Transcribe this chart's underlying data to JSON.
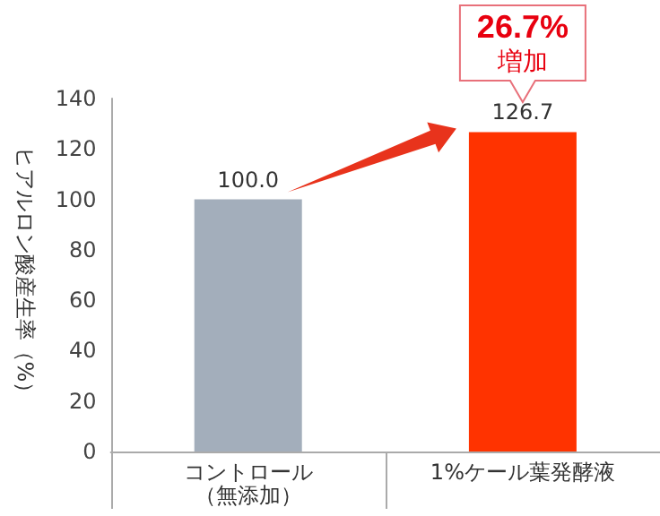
{
  "chart_data": {
    "type": "bar",
    "ylabel": "ヒアルロン酸産生率（%）",
    "categories": [
      "コントロール（無添加）",
      "1%ケール葉発酵液"
    ],
    "values": [
      100.0,
      126.7
    ],
    "colors": [
      "#a3aebb",
      "#ff3300"
    ],
    "value_labels": [
      "100.0",
      "126.7"
    ],
    "ylim": [
      0,
      140
    ],
    "yticks": [
      0,
      20,
      40,
      60,
      80,
      100,
      120,
      140
    ],
    "grid": false,
    "annotations": [
      "26.7%\n増加"
    ]
  }
}
